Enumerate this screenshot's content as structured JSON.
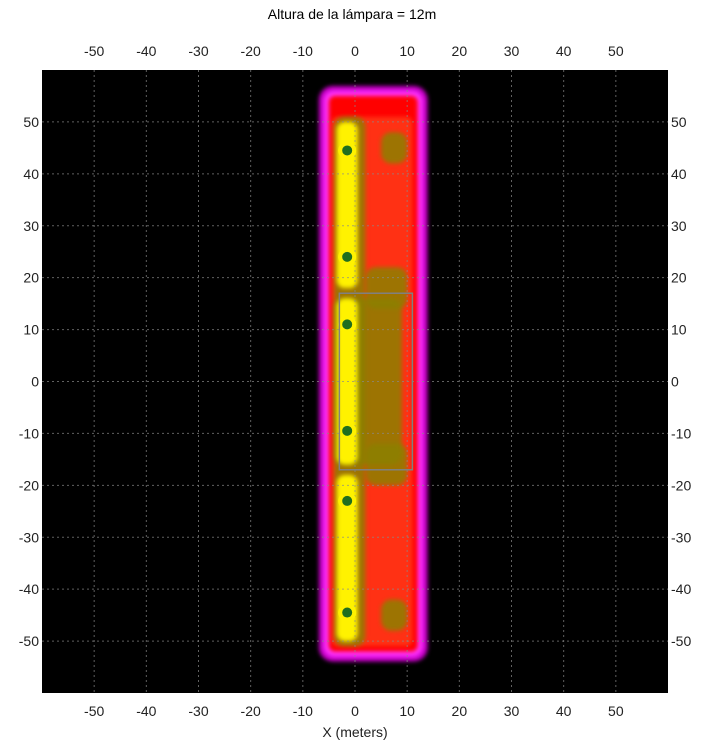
{
  "chart_data": {
    "type": "heatmap",
    "title": "Altura de la lámpara = 12m",
    "xlabel": "X (meters)",
    "ylabel": "",
    "xlim": [
      -60,
      60
    ],
    "ylim": [
      -60,
      60
    ],
    "x_ticks": [
      -50,
      -40,
      -30,
      -20,
      -10,
      0,
      10,
      20,
      30,
      40,
      50
    ],
    "y_ticks": [
      50,
      40,
      30,
      20,
      10,
      0,
      -10,
      -20,
      -30,
      -40,
      -50
    ],
    "grid": true,
    "background_color": "#000000",
    "color_levels": [
      "#000000",
      "#c800c8",
      "#ff33ff",
      "#ff0000",
      "#ff5a28",
      "#8c8000",
      "#fff200",
      "#1f6e1f"
    ],
    "illuminated_area": {
      "x_range": [
        -5,
        12
      ],
      "y_range": [
        -52,
        55
      ]
    },
    "road_outline": {
      "x_range": [
        -3,
        11
      ],
      "y_range": [
        -17,
        17
      ],
      "color": "#808080"
    },
    "luminaires": [
      {
        "x": -1.5,
        "y": 44.5
      },
      {
        "x": -1.5,
        "y": 24
      },
      {
        "x": -1.5,
        "y": 11
      },
      {
        "x": -1.5,
        "y": -9.5
      },
      {
        "x": -1.5,
        "y": -23
      },
      {
        "x": -1.5,
        "y": -44.5
      }
    ]
  }
}
